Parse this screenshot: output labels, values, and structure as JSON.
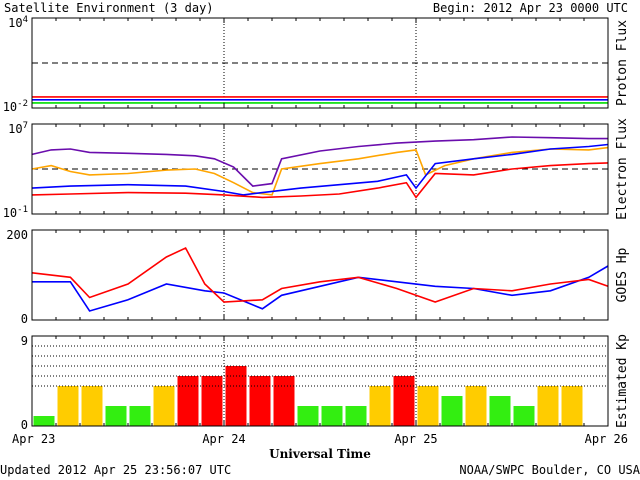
{
  "header": {
    "title": "Satellite Environment (3 day)",
    "begin": "Begin:  2012 Apr 23 0000 UTC"
  },
  "footer": {
    "updated": "Updated 2012 Apr 25 23:56:07 UTC",
    "credit": "NOAA/SWPC Boulder, CO USA",
    "xlabel": "Universal Time"
  },
  "x_ticks": [
    "Apr 23",
    "Apr 24",
    "Apr 25",
    "Apr 26"
  ],
  "chart_data": [
    {
      "type": "line",
      "ylabel": "Proton Flux",
      "scale": "log",
      "ylim": [
        0.01,
        10000
      ],
      "tick_labels": [
        "10^4",
        "10^-2"
      ],
      "threshold": 10,
      "xlim_days": [
        0,
        3
      ],
      "series": [
        {
          "color": "#ff0000",
          "x": [
            0,
            0.5,
            1,
            1.5,
            2,
            2.5,
            3
          ],
          "y": [
            0.055,
            0.055,
            0.055,
            0.055,
            0.055,
            0.055,
            0.055
          ]
        },
        {
          "color": "#0000ff",
          "x": [
            0,
            0.5,
            1,
            1.5,
            2,
            2.5,
            3
          ],
          "y": [
            0.035,
            0.035,
            0.035,
            0.035,
            0.035,
            0.035,
            0.035
          ]
        },
        {
          "color": "#00dd00",
          "x": [
            0,
            0.5,
            1,
            1.5,
            2,
            2.5,
            3
          ],
          "y": [
            0.022,
            0.022,
            0.022,
            0.022,
            0.022,
            0.022,
            0.022
          ]
        }
      ]
    },
    {
      "type": "line",
      "ylabel": "Electron Flux",
      "scale": "log",
      "ylim": [
        0.1,
        10000000
      ],
      "tick_labels": [
        "10^7",
        "10^-1"
      ],
      "threshold": 1000,
      "xlim_days": [
        0,
        3
      ],
      "series": [
        {
          "color": "#6a0dad",
          "x": [
            0,
            0.1,
            0.2,
            0.3,
            0.5,
            0.7,
            0.85,
            0.95,
            1.05,
            1.15,
            1.25,
            1.3,
            1.5,
            1.7,
            1.9,
            2.1,
            2.3,
            2.5,
            2.7,
            2.9,
            3
          ],
          "y": [
            20000,
            50000,
            60000,
            30000,
            25000,
            20000,
            15000,
            8000,
            1500,
            30,
            50,
            8000,
            40000,
            100000,
            200000,
            300000,
            400000,
            700000,
            600000,
            500000,
            500000
          ]
        },
        {
          "color": "#ffa500",
          "x": [
            0,
            0.1,
            0.2,
            0.3,
            0.5,
            0.7,
            0.85,
            0.95,
            1.05,
            1.15,
            1.25,
            1.3,
            1.5,
            1.7,
            1.9,
            2.0,
            2.05,
            2.15,
            2.3,
            2.5,
            2.7,
            2.9,
            3
          ],
          "y": [
            1000,
            2000,
            600,
            300,
            400,
            800,
            1000,
            400,
            60,
            8,
            5,
            1000,
            3000,
            8000,
            30000,
            50000,
            300,
            2000,
            8000,
            30000,
            60000,
            50000,
            80000
          ]
        },
        {
          "color": "#0000ff",
          "x": [
            0,
            0.2,
            0.5,
            0.8,
            1.0,
            1.1,
            1.2,
            1.4,
            1.6,
            1.8,
            1.95,
            2.0,
            2.1,
            2.3,
            2.5,
            2.7,
            2.9,
            3
          ],
          "y": [
            20,
            30,
            40,
            30,
            10,
            5,
            8,
            20,
            40,
            80,
            300,
            20,
            3000,
            8000,
            20000,
            60000,
            100000,
            150000
          ]
        },
        {
          "color": "#ff0000",
          "x": [
            0,
            0.2,
            0.5,
            0.8,
            1.0,
            1.2,
            1.4,
            1.6,
            1.8,
            1.95,
            2.0,
            2.1,
            2.3,
            2.5,
            2.7,
            2.9,
            3
          ],
          "y": [
            5,
            6,
            8,
            7,
            5,
            3,
            4,
            6,
            20,
            60,
            3,
            400,
            300,
            1000,
            2000,
            3000,
            3500
          ]
        }
      ]
    },
    {
      "type": "line",
      "ylabel": "GOES Hp",
      "scale": "linear",
      "ylim": [
        0,
        200
      ],
      "tick_labels": [
        "200",
        "0"
      ],
      "xlim_days": [
        0,
        3
      ],
      "series": [
        {
          "color": "#0000ff",
          "x": [
            0,
            0.2,
            0.3,
            0.5,
            0.7,
            0.9,
            1.0,
            1.2,
            1.3,
            1.5,
            1.7,
            1.9,
            2.1,
            2.3,
            2.5,
            2.7,
            2.9,
            3
          ],
          "y": [
            85,
            85,
            20,
            45,
            80,
            65,
            60,
            25,
            55,
            75,
            95,
            85,
            75,
            70,
            55,
            65,
            95,
            120
          ]
        },
        {
          "color": "#ff0000",
          "x": [
            0,
            0.2,
            0.3,
            0.5,
            0.7,
            0.8,
            0.9,
            1.0,
            1.2,
            1.3,
            1.5,
            1.7,
            1.9,
            2.1,
            2.3,
            2.5,
            2.7,
            2.9,
            3
          ],
          "y": [
            105,
            95,
            50,
            80,
            140,
            160,
            80,
            40,
            45,
            70,
            85,
            95,
            70,
            40,
            70,
            65,
            80,
            90,
            75
          ]
        }
      ]
    },
    {
      "type": "bar",
      "ylabel": "Estimated Kp",
      "ylim": [
        0,
        9
      ],
      "tick_labels": [
        "9",
        "0"
      ],
      "gridlines": [
        4,
        5,
        6,
        7,
        8
      ],
      "xlim_days": [
        0,
        3
      ],
      "bar_width_hours": 3,
      "values": [
        1,
        4,
        4,
        2,
        2,
        4,
        5,
        5,
        6,
        5,
        5,
        2,
        2,
        2,
        4,
        5,
        4,
        3,
        4,
        3,
        2,
        4,
        4
      ],
      "color_rules": [
        {
          "below": 4,
          "color": "#33ee11"
        },
        {
          "below": 5,
          "color": "#ffcc00"
        },
        {
          "below": 10,
          "color": "#ff0000"
        }
      ]
    }
  ]
}
